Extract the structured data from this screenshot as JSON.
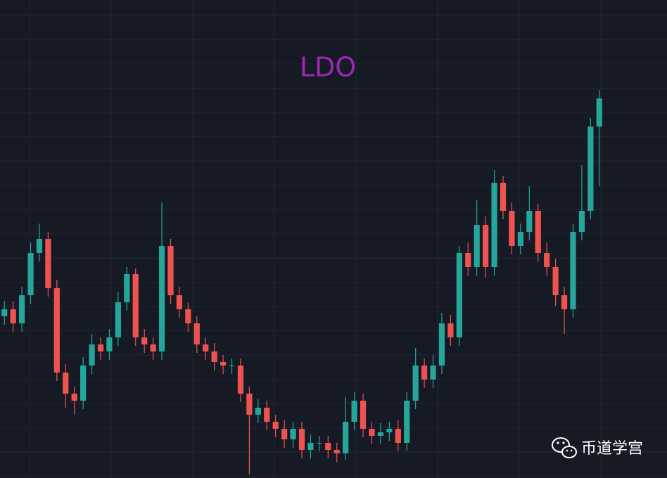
{
  "chart_data": {
    "type": "candlestick",
    "title": "LDO",
    "watermark": "币道学宫",
    "ylim": [
      0,
      680
    ],
    "up_color": "#26a69a",
    "down_color": "#ef5350",
    "open": [
      230,
      240,
      220,
      260,
      320,
      340,
      270,
      150,
      120,
      110,
      160,
      190,
      180,
      200,
      250,
      290,
      200,
      190,
      180,
      330,
      260,
      240,
      220,
      190,
      180,
      165,
      160,
      160,
      120,
      90,
      100,
      80,
      70,
      55,
      70,
      40,
      50,
      50,
      40,
      35,
      80,
      110,
      70,
      60,
      65,
      70,
      50,
      110,
      160,
      140,
      160,
      220,
      200,
      320,
      300,
      360,
      300,
      420,
      380,
      330,
      350,
      380,
      320,
      300,
      260,
      240,
      350,
      380,
      500
    ],
    "high": [
      252,
      252,
      272,
      335,
      362,
      350,
      282,
      162,
      130,
      172,
      205,
      200,
      212,
      265,
      300,
      298,
      212,
      200,
      392,
      340,
      272,
      250,
      230,
      200,
      192,
      175,
      170,
      170,
      130,
      112,
      110,
      90,
      82,
      80,
      80,
      62,
      60,
      60,
      50,
      115,
      122,
      120,
      80,
      78,
      80,
      82,
      122,
      185,
      170,
      175,
      235,
      232,
      330,
      335,
      395,
      372,
      438,
      430,
      392,
      362,
      415,
      390,
      335,
      312,
      272,
      362,
      445,
      512,
      552
    ],
    "low": [
      218,
      208,
      208,
      248,
      308,
      258,
      138,
      100,
      90,
      98,
      148,
      168,
      168,
      188,
      238,
      188,
      178,
      168,
      168,
      248,
      228,
      208,
      178,
      168,
      153,
      148,
      148,
      108,
      5,
      78,
      68,
      58,
      43,
      43,
      28,
      28,
      38,
      28,
      22,
      25,
      68,
      58,
      48,
      48,
      53,
      38,
      38,
      98,
      128,
      128,
      148,
      188,
      188,
      288,
      288,
      285,
      288,
      368,
      318,
      318,
      338,
      308,
      288,
      245,
      205,
      228,
      338,
      368,
      415
    ],
    "close": [
      240,
      220,
      260,
      320,
      340,
      270,
      150,
      120,
      110,
      160,
      190,
      180,
      200,
      250,
      290,
      200,
      190,
      180,
      330,
      260,
      240,
      220,
      190,
      180,
      165,
      160,
      160,
      120,
      90,
      100,
      80,
      70,
      55,
      70,
      40,
      50,
      50,
      40,
      35,
      80,
      110,
      70,
      60,
      65,
      70,
      50,
      110,
      160,
      140,
      160,
      220,
      200,
      320,
      300,
      360,
      300,
      420,
      380,
      330,
      350,
      380,
      320,
      300,
      260,
      240,
      350,
      380,
      500,
      540
    ]
  }
}
